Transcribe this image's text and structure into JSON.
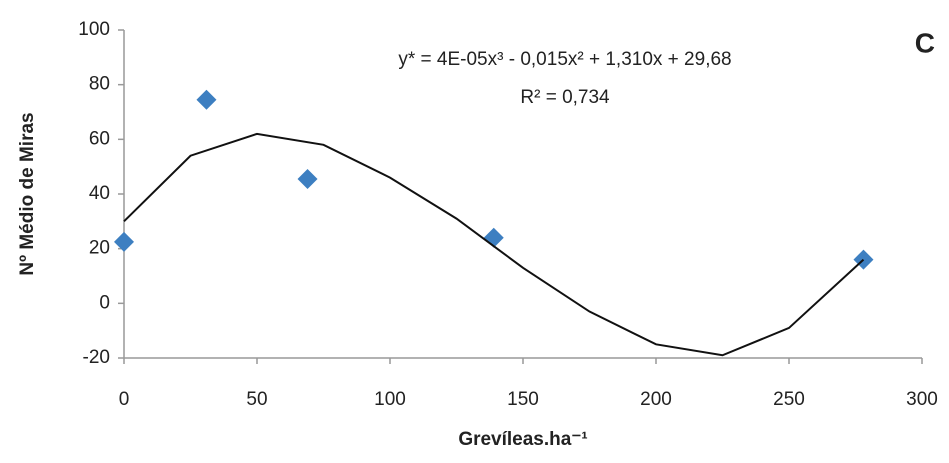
{
  "chart_data": {
    "type": "scatter",
    "annotation": "C",
    "equation": "y* = 4E-05x³ - 0,015x² + 1,310x + 29,68",
    "r_squared": "R² = 0,734",
    "xlabel": "Grevíleas.ha⁻¹",
    "ylabel": "Nº Médio de Miras",
    "xlim": [
      0,
      300
    ],
    "xticks": [
      0,
      50,
      100,
      150,
      200,
      250,
      300
    ],
    "ylim": [
      -20,
      100
    ],
    "yticks": [
      -20,
      0,
      20,
      40,
      60,
      80,
      100
    ],
    "series": [
      {
        "type": "scatter",
        "color": "#3d7fc1",
        "x": [
          0,
          31,
          69,
          139,
          278
        ],
        "values": [
          22.5,
          74.5,
          45.5,
          24,
          16
        ]
      },
      {
        "type": "line",
        "color": "#111111",
        "x": [
          0,
          25,
          50,
          75,
          100,
          125,
          150,
          175,
          200,
          225,
          250,
          278
        ],
        "values": [
          30,
          54,
          62,
          58,
          46,
          31,
          13,
          -3,
          -15,
          -19,
          -9,
          16
        ]
      }
    ]
  }
}
